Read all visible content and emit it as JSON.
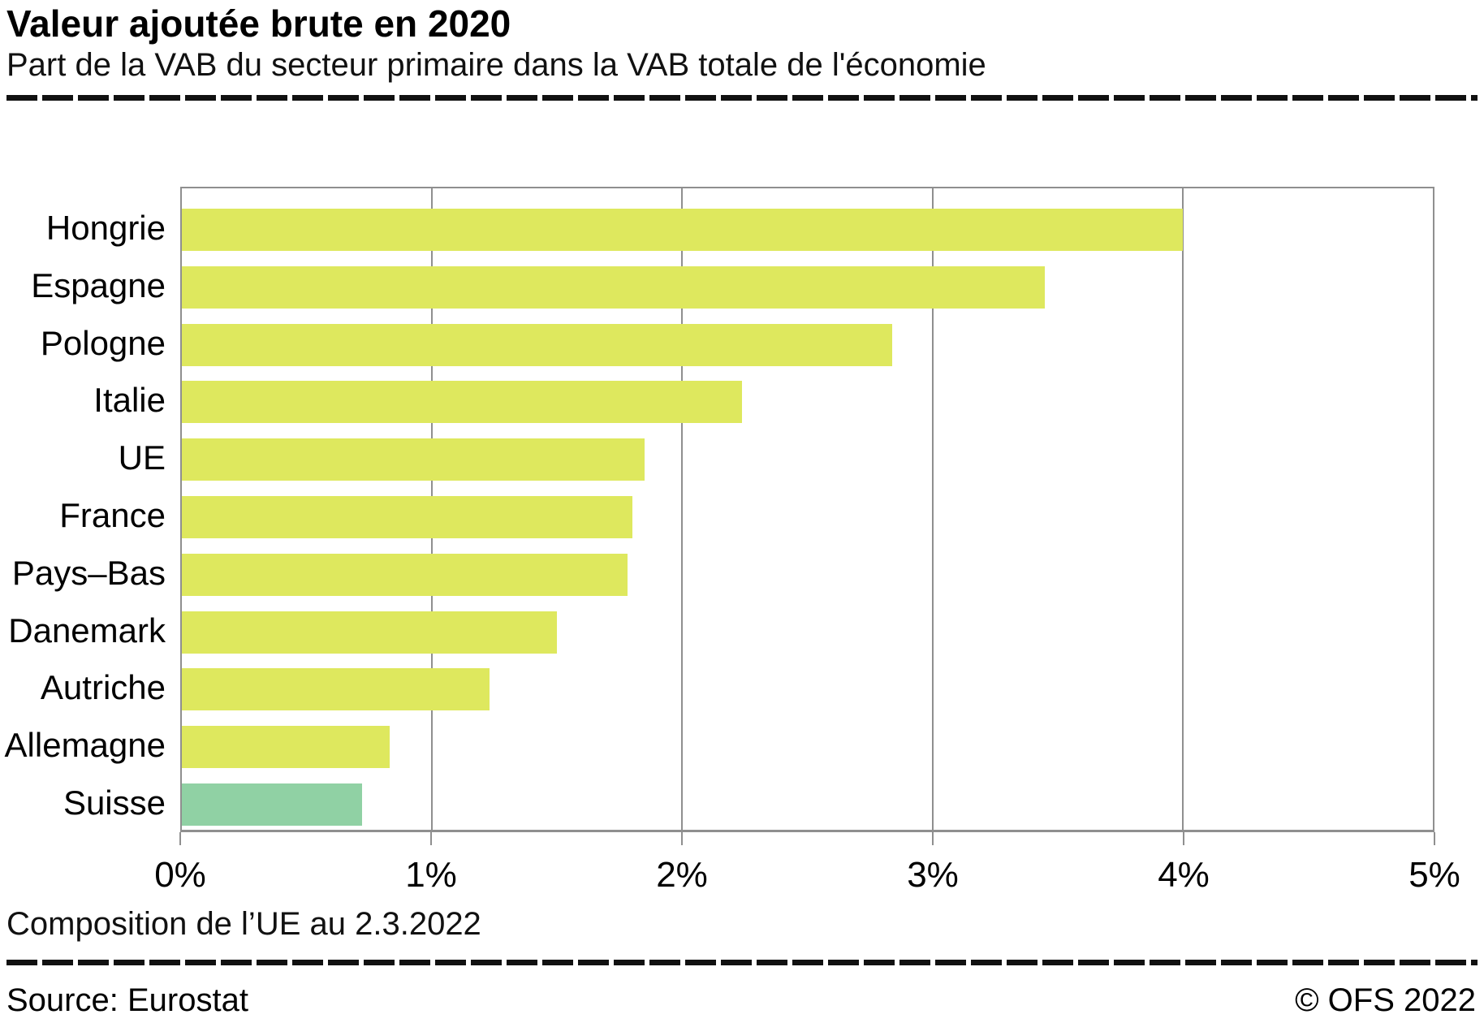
{
  "header": {
    "title": "Valeur ajoutée brute en 2020",
    "subtitle": "Part de la VAB du secteur primaire dans la VAB totale de l'économie"
  },
  "footnote": "Composition de l’UE au 2.3.2022",
  "footer": {
    "source": "Source: Eurostat",
    "copyright": "© OFS 2022"
  },
  "colors": {
    "bar_default": "#dee85e",
    "bar_highlight": "#90d1a4",
    "grid": "#8f8f8f",
    "rule": "#111111",
    "text": "#000000"
  },
  "chart_data": {
    "type": "bar",
    "orientation": "horizontal",
    "title": "Valeur ajoutée brute en 2020",
    "subtitle": "Part de la VAB du secteur primaire dans la VAB totale de l'économie",
    "categories": [
      "Hongrie",
      "Espagne",
      "Pologne",
      "Italie",
      "UE",
      "France",
      "Pays–Bas",
      "Danemark",
      "Autriche",
      "Allemagne",
      "Suisse"
    ],
    "values": [
      4.0,
      3.45,
      2.84,
      2.24,
      1.85,
      1.8,
      1.78,
      1.5,
      1.23,
      0.83,
      0.72
    ],
    "unit": "%",
    "highlight_category": "Suisse",
    "xlabel": "",
    "ylabel": "",
    "xlim": [
      0,
      5
    ],
    "x_ticks": [
      "0%",
      "1%",
      "2%",
      "3%",
      "4%",
      "5%"
    ],
    "grid": true,
    "legend": false
  }
}
